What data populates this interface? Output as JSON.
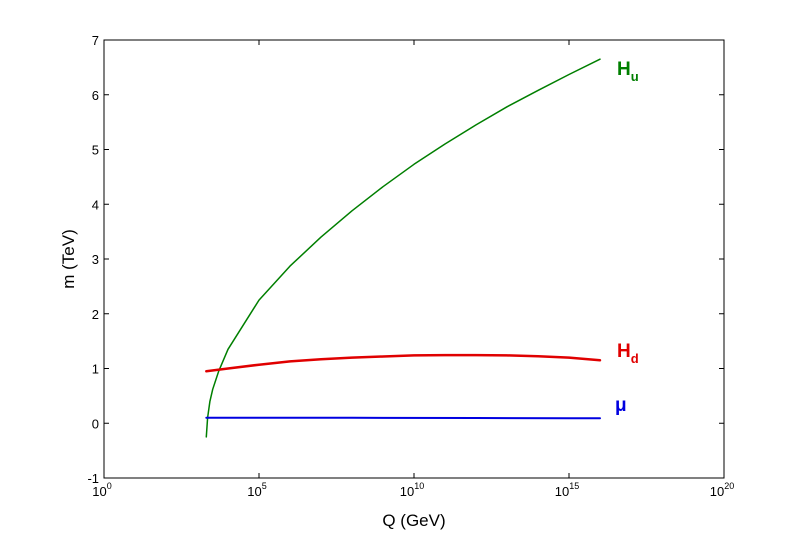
{
  "chart_data": {
    "type": "line",
    "xlabel": "Q (GeV)",
    "ylabel": "m (TeV)",
    "xscale": "log",
    "xlim": [
      1,
      1e+20
    ],
    "ylim": [
      -1,
      7
    ],
    "grid": false,
    "legend": "none",
    "xticks": [
      {
        "value": 1,
        "base": "10",
        "exp": "0"
      },
      {
        "value": 100000,
        "base": "10",
        "exp": "5"
      },
      {
        "value": 10000000000,
        "base": "10",
        "exp": "10"
      },
      {
        "value": 1000000000000000.0,
        "base": "10",
        "exp": "15"
      },
      {
        "value": 1e+20,
        "base": "10",
        "exp": "20"
      }
    ],
    "yticks": [
      "-1",
      "0",
      "1",
      "2",
      "3",
      "4",
      "5",
      "6",
      "7"
    ],
    "series": [
      {
        "label_main": "H",
        "label_sub": "u",
        "color": "#007f00",
        "x": [
          2000,
          2200,
          2600,
          3200,
          5000,
          10000,
          100000,
          1000000,
          10000000,
          100000000,
          1000000000,
          10000000000,
          100000000000,
          1000000000000,
          10000000000000,
          100000000000000,
          1000000000000000.0,
          1e+16
        ],
        "y": [
          -0.25,
          0.1,
          0.4,
          0.62,
          0.95,
          1.35,
          2.25,
          2.87,
          3.4,
          3.88,
          4.32,
          4.73,
          5.1,
          5.45,
          5.78,
          6.08,
          6.37,
          6.65
        ]
      },
      {
        "label_main": "H",
        "label_sub": "d",
        "color": "#e00000",
        "x": [
          2000,
          10000,
          100000,
          1000000,
          10000000,
          100000000,
          1000000000,
          10000000000,
          100000000000,
          1000000000000,
          10000000000000,
          100000000000000,
          1000000000000000.0,
          1e+16
        ],
        "y": [
          0.95,
          1.0,
          1.07,
          1.13,
          1.17,
          1.2,
          1.22,
          1.24,
          1.245,
          1.245,
          1.24,
          1.225,
          1.2,
          1.15
        ]
      },
      {
        "label_main": "μ",
        "label_sub": "",
        "color": "#0000e0",
        "x": [
          2000,
          100000,
          100000000,
          1000000000000,
          1000000000000000.0,
          1e+16
        ],
        "y": [
          0.1,
          0.1,
          0.1,
          0.095,
          0.09,
          0.09
        ]
      }
    ]
  }
}
